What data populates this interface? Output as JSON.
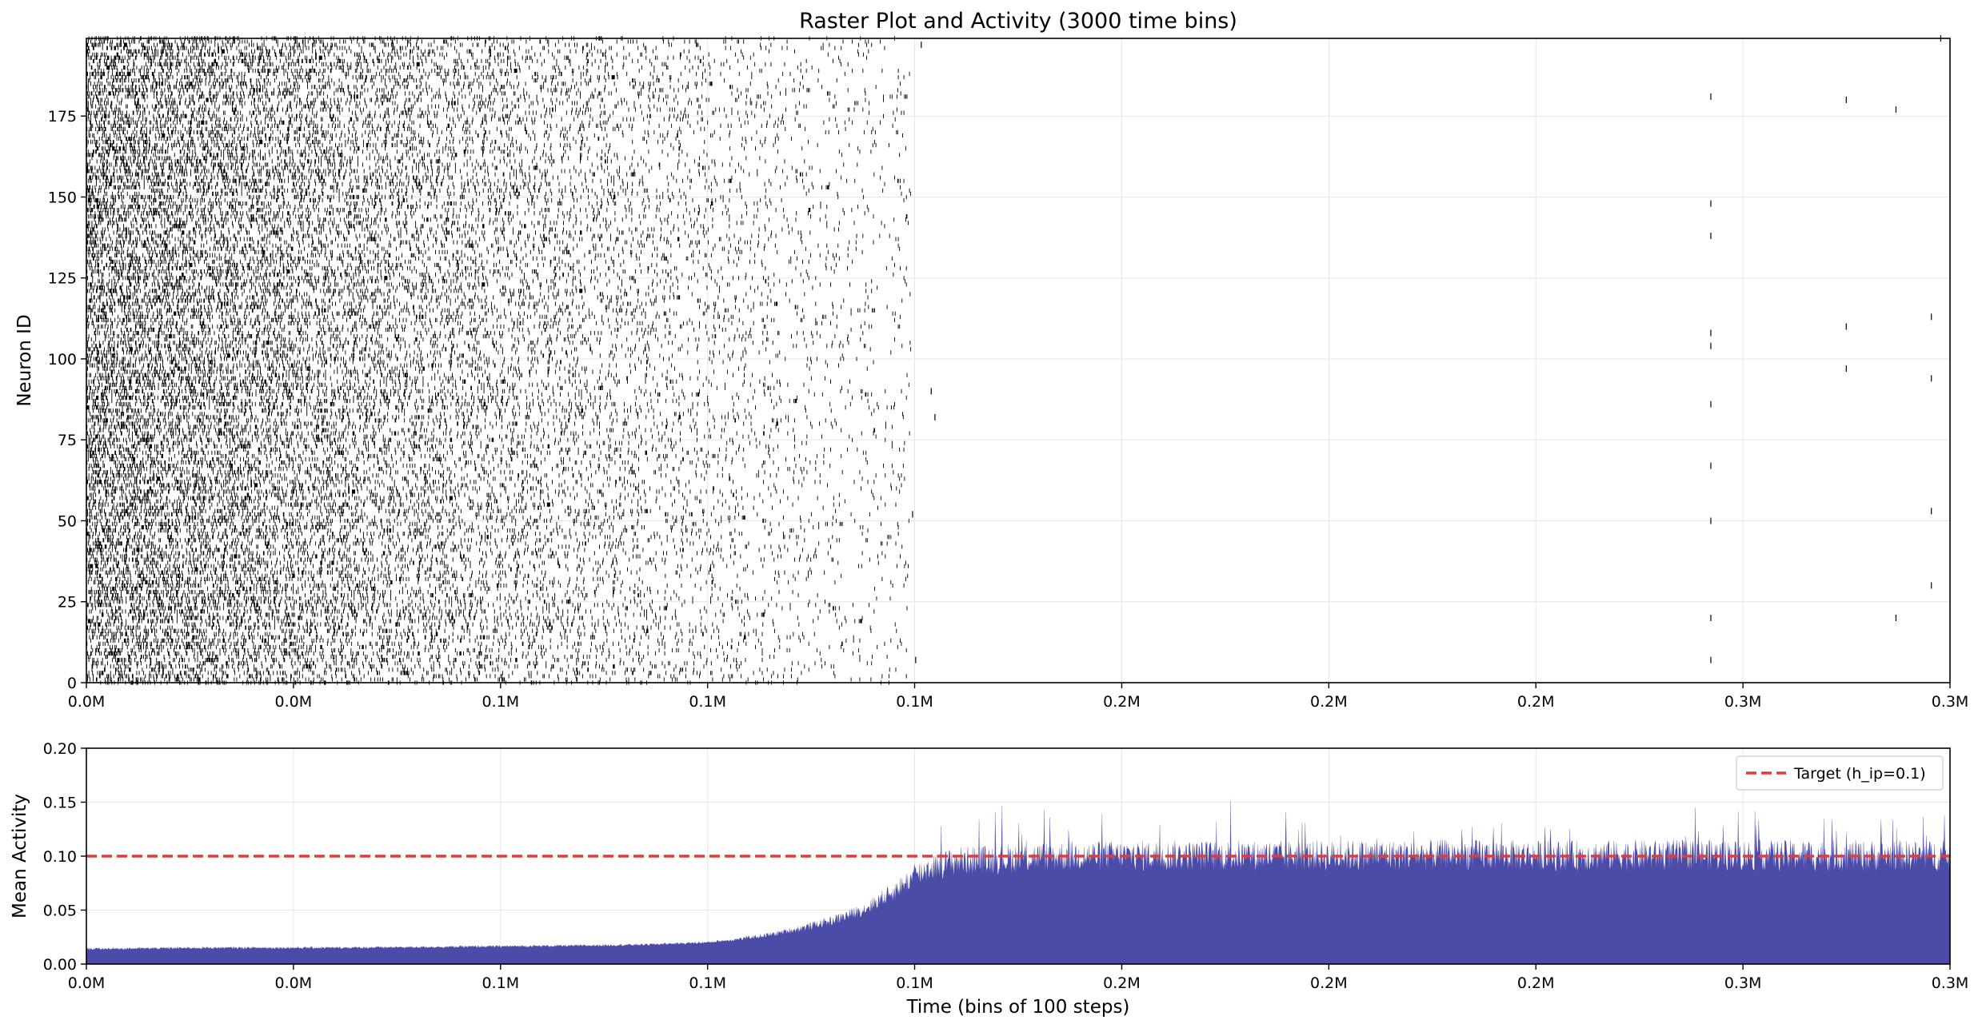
{
  "figure_title": "Raster Plot and Activity (3000 time bins)",
  "colors": {
    "spike": "#000000",
    "activity_fill": "#4b4ca8",
    "target_line": "#e8393a",
    "grid": "#e6e6e6"
  },
  "chart_data": [
    {
      "type": "scatter",
      "subtype": "raster",
      "title": "Raster Plot and Activity (3000 time bins)",
      "xlabel": "",
      "ylabel": "Neuron ID",
      "xlim": [
        0,
        3000
      ],
      "ylim": [
        0,
        199
      ],
      "x_ticks": [
        0,
        333.3,
        666.7,
        1000,
        1333.3,
        1666.7,
        2000,
        2333.3,
        2666.7,
        3000
      ],
      "x_tick_labels": [
        "0.0M",
        "0.0M",
        "0.1M",
        "0.1M",
        "0.1M",
        "0.2M",
        "0.2M",
        "0.2M",
        "0.3M",
        "0.3M"
      ],
      "y_ticks": [
        0,
        25,
        50,
        75,
        100,
        125,
        150,
        175
      ],
      "y_tick_labels": [
        "0",
        "25",
        "50",
        "75",
        "100",
        "125",
        "150",
        "175"
      ],
      "grid": true,
      "dense_region": {
        "x_start": 0,
        "x_end": 1330,
        "spike_probability_start": 0.22,
        "spike_probability_end": 0.015
      },
      "isolated_spikes": [
        {
          "x": 2615,
          "y": 181
        },
        {
          "x": 2833,
          "y": 180
        },
        {
          "x": 2913,
          "y": 177
        },
        {
          "x": 2615,
          "y": 148
        },
        {
          "x": 2615,
          "y": 138
        },
        {
          "x": 2615,
          "y": 108
        },
        {
          "x": 2615,
          "y": 104
        },
        {
          "x": 2833,
          "y": 110
        },
        {
          "x": 2833,
          "y": 97
        },
        {
          "x": 2970,
          "y": 113
        },
        {
          "x": 2970,
          "y": 94
        },
        {
          "x": 2615,
          "y": 86
        },
        {
          "x": 2615,
          "y": 67
        },
        {
          "x": 2615,
          "y": 50
        },
        {
          "x": 2970,
          "y": 53
        },
        {
          "x": 2970,
          "y": 30
        },
        {
          "x": 2615,
          "y": 20
        },
        {
          "x": 2913,
          "y": 20
        },
        {
          "x": 2615,
          "y": 7
        },
        {
          "x": 2985,
          "y": 199
        },
        {
          "x": 1344,
          "y": 197
        },
        {
          "x": 1360,
          "y": 90
        },
        {
          "x": 1366,
          "y": 82
        },
        {
          "x": 1330,
          "y": 52
        },
        {
          "x": 1335,
          "y": 7
        }
      ]
    },
    {
      "type": "area",
      "title": "",
      "xlabel": "Time (bins of 100 steps)",
      "ylabel": "Mean Activity",
      "xlim": [
        0,
        3000
      ],
      "ylim": [
        0,
        0.2
      ],
      "x_ticks": [
        0,
        333.3,
        666.7,
        1000,
        1333.3,
        1666.7,
        2000,
        2333.3,
        2666.7,
        3000
      ],
      "x_tick_labels": [
        "0.0M",
        "0.0M",
        "0.1M",
        "0.1M",
        "0.1M",
        "0.2M",
        "0.2M",
        "0.2M",
        "0.3M",
        "0.3M"
      ],
      "y_ticks": [
        0,
        0.05,
        0.1,
        0.15,
        0.2
      ],
      "y_tick_labels": [
        "0.00",
        "0.05",
        "0.10",
        "0.15",
        "0.20"
      ],
      "grid": true,
      "legend_position": "top-right",
      "series": [
        {
          "kind": "mean_activity_envelope",
          "x": [
            0,
            200,
            400,
            600,
            800,
            900,
            1000,
            1050,
            1100,
            1150,
            1200,
            1250,
            1300,
            1330,
            1360,
            1400,
            1500,
            1600,
            1800,
            2000,
            2200,
            2400,
            2600,
            2800,
            3000
          ],
          "values": [
            0.014,
            0.015,
            0.015,
            0.016,
            0.017,
            0.018,
            0.02,
            0.023,
            0.027,
            0.033,
            0.04,
            0.05,
            0.067,
            0.08,
            0.09,
            0.095,
            0.098,
            0.1,
            0.1,
            0.1,
            0.101,
            0.1,
            0.101,
            0.1,
            0.1
          ],
          "fluctuation_amplitude_after_rise": 0.03
        },
        {
          "name": "Target (h_ip=0.1)",
          "kind": "horizontal_line",
          "value": 0.1
        }
      ]
    }
  ]
}
